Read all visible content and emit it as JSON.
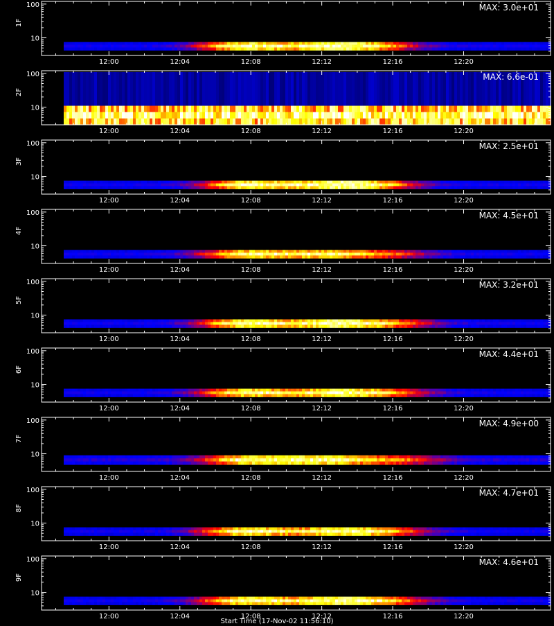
{
  "chart_data": {
    "type": "heatmap",
    "x_axis_title": "Start Time (17-Nov-02 11:56:10)",
    "x_ticks": [
      "12:00",
      "12:04",
      "12:08",
      "12:12",
      "12:16",
      "12:20"
    ],
    "x_tick_minutes": [
      0,
      4,
      8,
      12,
      16,
      20
    ],
    "x_range_minutes": [
      -3.8,
      24.9
    ],
    "y_scale": "log",
    "y_ticks": [
      "100",
      "10"
    ],
    "y_tick_values": [
      100,
      10
    ],
    "y_range": [
      3,
      120
    ],
    "panels": [
      {
        "label": "1F",
        "max_label": "MAX: 3.0e+01",
        "band": [
          4.3,
          7.5
        ],
        "base_level": 0.15,
        "peaks": [
          {
            "t": 7.8,
            "level": 1.0
          },
          {
            "t": 12.6,
            "level": 0.9
          },
          {
            "t": 15.0,
            "level": 0.45
          }
        ]
      },
      {
        "label": "2F",
        "max_label": "MAX: 6.6e-01",
        "band": [
          3,
          11
        ],
        "base_level": 0.9,
        "peaks": []
      },
      {
        "label": "3F",
        "max_label": "MAX: 2.5e+01",
        "band": [
          4.3,
          7.5
        ],
        "base_level": 0.15,
        "peaks": [
          {
            "t": 8.0,
            "level": 1.0
          },
          {
            "t": 12.6,
            "level": 0.95
          },
          {
            "t": 15.0,
            "level": 0.5
          }
        ]
      },
      {
        "label": "4F",
        "max_label": "MAX: 4.5e+01",
        "band": [
          4.3,
          7.5
        ],
        "base_level": 0.15,
        "peaks": [
          {
            "t": 7.8,
            "level": 0.85
          },
          {
            "t": 12.0,
            "level": 0.75
          },
          {
            "t": 15.5,
            "level": 0.4
          }
        ]
      },
      {
        "label": "5F",
        "max_label": "MAX: 3.2e+01",
        "band": [
          4.3,
          7.5
        ],
        "base_level": 0.15,
        "peaks": [
          {
            "t": 7.8,
            "level": 1.0
          },
          {
            "t": 12.6,
            "level": 1.0
          },
          {
            "t": 15.8,
            "level": 0.5
          }
        ]
      },
      {
        "label": "6F",
        "max_label": "MAX: 4.4e+01",
        "band": [
          4.3,
          7.5
        ],
        "base_level": 0.15,
        "peaks": [
          {
            "t": 7.8,
            "level": 0.9
          },
          {
            "t": 12.6,
            "level": 0.85
          },
          {
            "t": 15.5,
            "level": 0.5
          }
        ]
      },
      {
        "label": "7F",
        "max_label": "MAX: 4.9e+00",
        "band": [
          4.8,
          9
        ],
        "base_level": 0.18,
        "peaks": [
          {
            "t": 8.0,
            "level": 0.9
          },
          {
            "t": 12.0,
            "level": 0.85
          },
          {
            "t": 16.0,
            "level": 0.45
          }
        ]
      },
      {
        "label": "8F",
        "max_label": "MAX: 4.7e+01",
        "band": [
          4.3,
          7.5
        ],
        "base_level": 0.15,
        "peaks": [
          {
            "t": 7.8,
            "level": 0.95
          },
          {
            "t": 12.6,
            "level": 0.85
          },
          {
            "t": 15.5,
            "level": 0.5
          }
        ]
      },
      {
        "label": "9F",
        "max_label": "MAX: 4.6e+01",
        "band": [
          4.3,
          7.5
        ],
        "base_level": 0.15,
        "peaks": [
          {
            "t": 7.8,
            "level": 0.95
          },
          {
            "t": 12.6,
            "level": 0.9
          },
          {
            "t": 15.5,
            "level": 0.5
          }
        ]
      }
    ],
    "colormap": [
      "#000000",
      "#0000ff",
      "#ff0000",
      "#ffff00",
      "#ffffff"
    ]
  }
}
